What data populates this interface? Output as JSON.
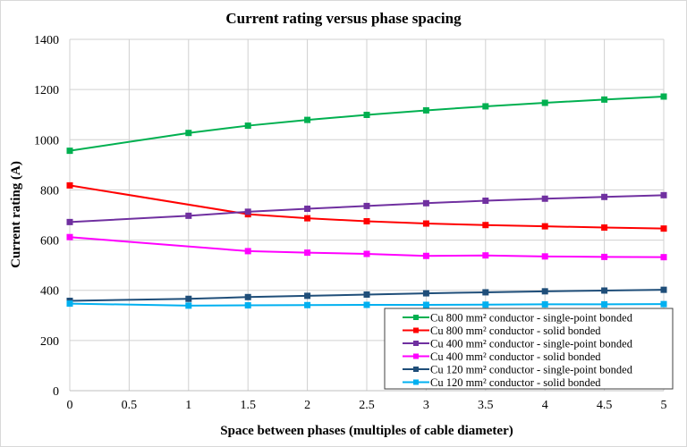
{
  "chart_data": {
    "type": "line",
    "title": "Current rating versus phase spacing",
    "xlabel": "Space between phases (multiples of cable diameter)",
    "ylabel": "Current rating (A)",
    "xlim": [
      0,
      5
    ],
    "ylim": [
      0,
      1400
    ],
    "xticks": [
      "0",
      "0.5",
      "1",
      "1.5",
      "2",
      "2.5",
      "3",
      "3.5",
      "4",
      "4.5",
      "5"
    ],
    "yticks": [
      "0",
      "200",
      "400",
      "600",
      "800",
      "1000",
      "1200",
      "1400"
    ],
    "grid": true,
    "legend_position": "bottom-right",
    "x": [
      0,
      1,
      1.5,
      2,
      2.5,
      3,
      3.5,
      4,
      4.5,
      5
    ],
    "series": [
      {
        "name": "Cu 800 mm² conductor - single-point bonded",
        "color": "#00b050",
        "values": [
          956,
          1027,
          1056,
          1079,
          1099,
          1117,
          1133,
          1147,
          1160,
          1172
        ]
      },
      {
        "name": "Cu 800 mm² conductor - solid bonded",
        "color": "#ff0000",
        "values": [
          818,
          null,
          703,
          687,
          675,
          666,
          660,
          655,
          650,
          646
        ]
      },
      {
        "name": "Cu 400 mm² conductor - single-point bonded",
        "color": "#7030a0",
        "values": [
          672,
          697,
          713,
          725,
          736,
          747,
          757,
          765,
          772,
          779
        ]
      },
      {
        "name": "Cu 400 mm² conductor - solid bonded",
        "color": "#ff00ff",
        "values": [
          612,
          null,
          556,
          550,
          545,
          537,
          539,
          535,
          533,
          532
        ]
      },
      {
        "name": "Cu 120 mm² conductor - single-point bonded",
        "color": "#1f4e79",
        "values": [
          358,
          366,
          373,
          378,
          383,
          388,
          392,
          396,
          399,
          402
        ]
      },
      {
        "name": "Cu 120 mm² conductor - solid bonded",
        "color": "#00b0f0",
        "values": [
          347,
          339,
          340,
          341,
          342,
          342,
          343,
          344,
          344,
          345
        ]
      }
    ]
  }
}
